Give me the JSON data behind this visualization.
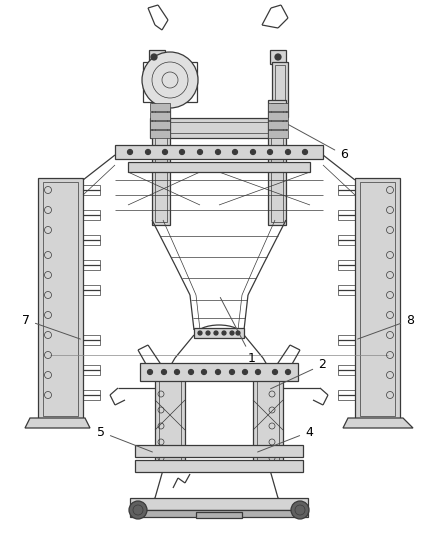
{
  "bg_color": "#ffffff",
  "line_color": "#3a3a3a",
  "fill_light": "#d4d4d4",
  "fill_dark": "#a0a0a0",
  "fig_width": 4.38,
  "fig_height": 5.33,
  "dpi": 100,
  "label_fontsize": 9,
  "label_color": "#000000",
  "thin_lw": 0.5,
  "main_lw": 0.9,
  "thick_lw": 1.4
}
